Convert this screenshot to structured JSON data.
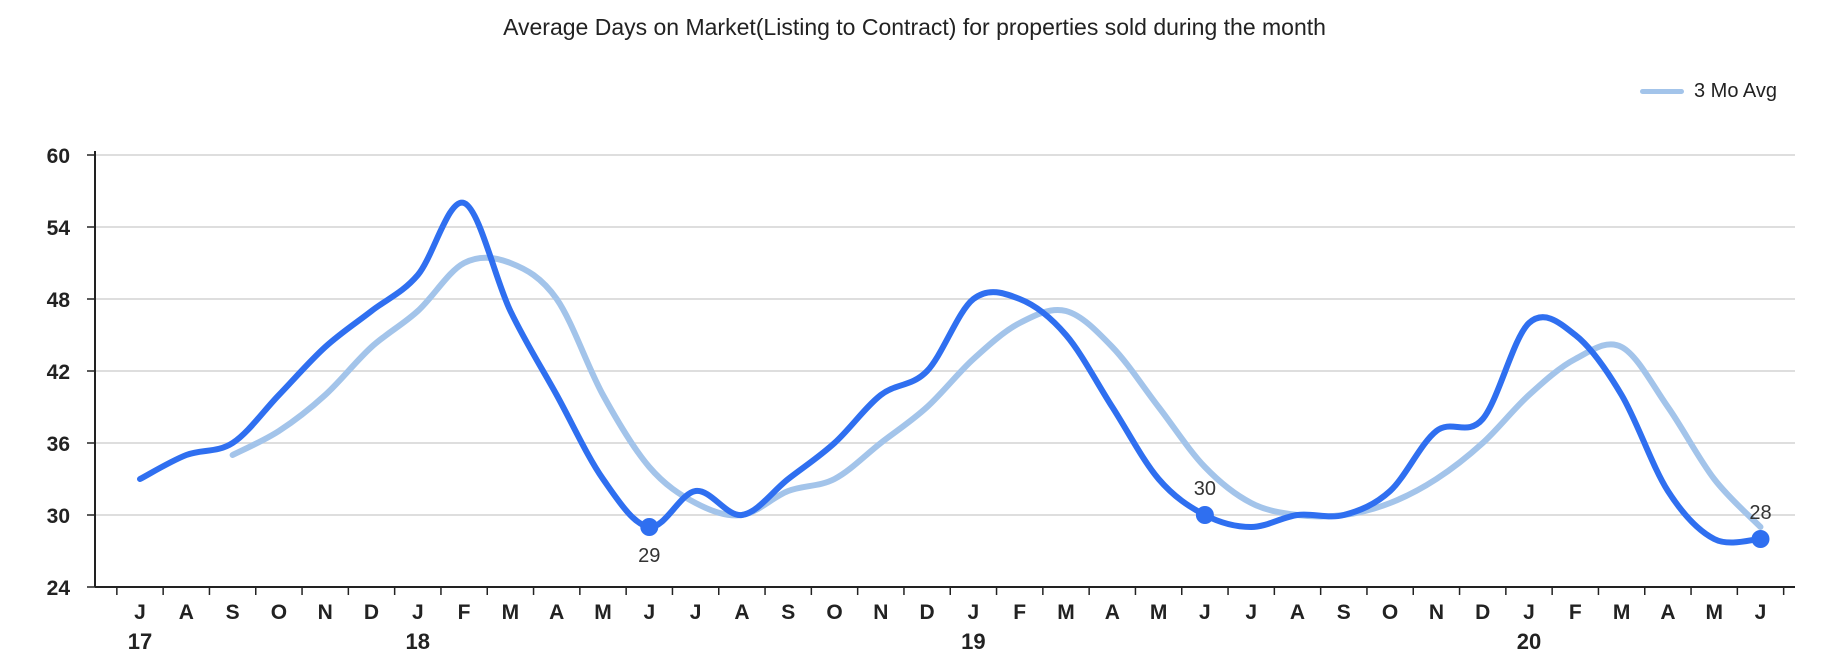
{
  "chart_data": {
    "type": "line",
    "title": "Average Days on Market(Listing to Contract) for properties sold during the month",
    "xlabel": "",
    "ylabel": "",
    "ylim": [
      24,
      60
    ],
    "yticks": [
      24,
      30,
      36,
      42,
      48,
      54,
      60
    ],
    "grid": true,
    "legend_position": "top-right",
    "categories": [
      "J",
      "A",
      "S",
      "O",
      "N",
      "D",
      "J",
      "F",
      "M",
      "A",
      "M",
      "J",
      "J",
      "A",
      "S",
      "O",
      "N",
      "D",
      "J",
      "F",
      "M",
      "A",
      "M",
      "J",
      "J",
      "A",
      "S",
      "O",
      "N",
      "D",
      "J",
      "F",
      "M",
      "A",
      "M",
      "J"
    ],
    "year_labels": [
      {
        "index": 0,
        "label": "17"
      },
      {
        "index": 6,
        "label": "18"
      },
      {
        "index": 18,
        "label": "19"
      },
      {
        "index": 30,
        "label": "20"
      }
    ],
    "series": [
      {
        "name": "Days on Market",
        "color": "#2f6ff0",
        "values": [
          33,
          35,
          36,
          40,
          44,
          47,
          50,
          56,
          47,
          40,
          33,
          29,
          32,
          30,
          33,
          36,
          40,
          42,
          48,
          48,
          45,
          39,
          33,
          30,
          29,
          30,
          30,
          32,
          37,
          38,
          46,
          45,
          40,
          32,
          28,
          28
        ]
      },
      {
        "name": "3 Mo Avg",
        "color": "#a3c4ea",
        "values": [
          null,
          null,
          35,
          37,
          40,
          44,
          47,
          51,
          51,
          48,
          40,
          34,
          31,
          30,
          32,
          33,
          36,
          39,
          43,
          46,
          47,
          44,
          39,
          34,
          31,
          30,
          30,
          31,
          33,
          36,
          40,
          43,
          44,
          39,
          33,
          29
        ]
      }
    ],
    "labeled_points": [
      {
        "index": 11,
        "value": "29",
        "position": "below"
      },
      {
        "index": 23,
        "value": "30",
        "position": "above"
      },
      {
        "index": 35,
        "value": "28",
        "position": "above"
      }
    ]
  },
  "legend": {
    "label": "3 Mo Avg",
    "color": "#a3c4ea"
  }
}
